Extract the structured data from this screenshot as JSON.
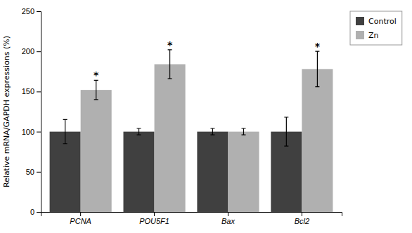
{
  "chart_data": {
    "type": "bar",
    "categories": [
      "PCNA",
      "POU5F1",
      "Bax",
      "Bcl2"
    ],
    "series": [
      {
        "name": "Control",
        "color": "#404040",
        "values": [
          100,
          100,
          100,
          100
        ],
        "errors": [
          15,
          4,
          4,
          18
        ]
      },
      {
        "name": "Zn",
        "color": "#b0b0b0",
        "values": [
          152,
          184,
          100,
          178
        ],
        "errors": [
          12,
          18,
          4,
          22
        ]
      }
    ],
    "y_label": "Relative mRNA/GAPDH expressions (%)",
    "ylim": [
      0,
      250
    ],
    "yticks": [
      0,
      50,
      100,
      150,
      200,
      250
    ],
    "legend": "right",
    "annotations": [
      {
        "text": "*",
        "category": "PCNA",
        "series": "Zn"
      },
      {
        "text": "*",
        "category": "POU5F1",
        "series": "Zn"
      },
      {
        "text": "*",
        "category": "Bcl2",
        "series": "Zn"
      }
    ]
  }
}
